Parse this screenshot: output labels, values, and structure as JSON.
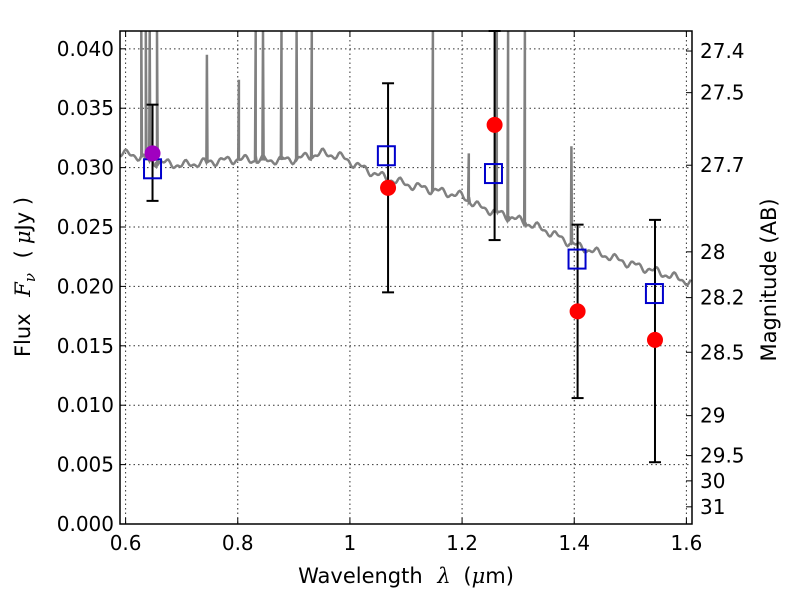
{
  "chart_data": {
    "type": "scatter",
    "title": "",
    "xlabel_prefix": "Wavelength",
    "xlabel_symbol": "λ",
    "xlabel_unit_open": "(",
    "xlabel_unit_mu": "μ",
    "xlabel_unit_rest": "m)",
    "ylabel_prefix": "Flux",
    "ylabel_symbol": "F",
    "ylabel_subscript": "ν",
    "ylabel_unit_open": "(",
    "ylabel_unit_mu": "μ",
    "ylabel_unit_rest": "Jy )",
    "y2label": "Magnitude (AB)",
    "xlim": [
      0.59,
      1.61
    ],
    "ylim": [
      0.0,
      0.0415
    ],
    "x_ticks": [
      0.6,
      0.8,
      1.0,
      1.2,
      1.4,
      1.6
    ],
    "x_tick_labels": [
      "0.6",
      "0.8",
      "1",
      "1.2",
      "1.4",
      "1.6"
    ],
    "y_ticks": [
      0.0,
      0.005,
      0.01,
      0.015,
      0.02,
      0.025,
      0.03,
      0.035,
      0.04
    ],
    "y_tick_labels": [
      "0.000",
      "0.005",
      "0.010",
      "0.015",
      "0.020",
      "0.025",
      "0.030",
      "0.035",
      "0.040"
    ],
    "y2_tick_labels": [
      "27.4",
      "27.5",
      "27.7",
      "28",
      "28.2",
      "28.5",
      "29",
      "29.5",
      "30",
      "31"
    ],
    "y2_tick_mags": [
      27.4,
      27.5,
      27.7,
      28,
      28.2,
      28.5,
      29,
      29.5,
      30,
      31
    ],
    "grid": true,
    "colors": {
      "model": "#808080",
      "observed": "#ff0000",
      "observed_first": "#a000c0",
      "model_band": "#0000cc",
      "errorbar": "#000000"
    },
    "model_spectrum": {
      "continuum": [
        [
          0.59,
          0.0312
        ],
        [
          0.62,
          0.031
        ],
        [
          0.65,
          0.0305
        ],
        [
          0.7,
          0.0302
        ],
        [
          0.75,
          0.0305
        ],
        [
          0.8,
          0.0307
        ],
        [
          0.85,
          0.0306
        ],
        [
          0.9,
          0.0307
        ],
        [
          0.95,
          0.0312
        ],
        [
          0.98,
          0.031
        ],
        [
          1.0,
          0.0305
        ],
        [
          1.03,
          0.0298
        ],
        [
          1.06,
          0.0292
        ],
        [
          1.1,
          0.0286
        ],
        [
          1.15,
          0.0281
        ],
        [
          1.2,
          0.0276
        ],
        [
          1.23,
          0.0267
        ],
        [
          1.27,
          0.0261
        ],
        [
          1.3,
          0.0256
        ],
        [
          1.35,
          0.0247
        ],
        [
          1.4,
          0.0235
        ],
        [
          1.45,
          0.0227
        ],
        [
          1.5,
          0.0219
        ],
        [
          1.55,
          0.0212
        ],
        [
          1.61,
          0.0203
        ]
      ],
      "emission_lines": [
        {
          "x": 0.628,
          "peak": 0.0415
        },
        {
          "x": 0.636,
          "peak": 0.0415
        },
        {
          "x": 0.643,
          "peak": 0.0415
        },
        {
          "x": 0.656,
          "peak": 0.0415
        },
        {
          "x": 0.745,
          "peak": 0.0395
        },
        {
          "x": 0.802,
          "peak": 0.0374
        },
        {
          "x": 0.832,
          "peak": 0.0415
        },
        {
          "x": 0.845,
          "peak": 0.0415
        },
        {
          "x": 0.878,
          "peak": 0.0415
        },
        {
          "x": 0.905,
          "peak": 0.0415
        },
        {
          "x": 0.932,
          "peak": 0.0415
        },
        {
          "x": 1.148,
          "peak": 0.0415
        },
        {
          "x": 1.212,
          "peak": 0.0312
        },
        {
          "x": 1.262,
          "peak": 0.0415
        },
        {
          "x": 1.282,
          "peak": 0.0415
        },
        {
          "x": 1.312,
          "peak": 0.0415
        },
        {
          "x": 1.395,
          "peak": 0.0318
        }
      ]
    },
    "observed": [
      {
        "x": 0.648,
        "y": 0.0312,
        "yerr_low": 0.0272,
        "yerr_high": 0.0353
      },
      {
        "x": 1.068,
        "y": 0.0283,
        "yerr_low": 0.0195,
        "yerr_high": 0.0371
      },
      {
        "x": 1.258,
        "y": 0.0336,
        "yerr_low": 0.0239,
        "yerr_high": 0.0415
      },
      {
        "x": 1.406,
        "y": 0.0179,
        "yerr_low": 0.0106,
        "yerr_high": 0.0252
      },
      {
        "x": 1.544,
        "y": 0.0155,
        "yerr_low": 0.0052,
        "yerr_high": 0.0256
      }
    ],
    "model_band_flux": [
      {
        "x": 0.648,
        "y": 0.0299
      },
      {
        "x": 1.065,
        "y": 0.031
      },
      {
        "x": 1.256,
        "y": 0.0295
      },
      {
        "x": 1.405,
        "y": 0.0223
      },
      {
        "x": 1.543,
        "y": 0.0194
      }
    ]
  }
}
